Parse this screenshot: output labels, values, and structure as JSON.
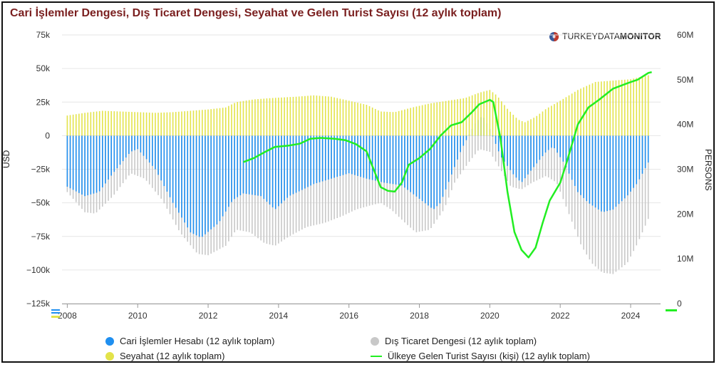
{
  "title": "Cari İşlemler Dengesi, Dış Ticaret Dengesi, Seyahat ve Gelen Turist Sayısı (12 aylık toplam)",
  "logo": {
    "prefix": "TURKEYDATA",
    "suffix": "MONITOR",
    "icon": "globe-icon"
  },
  "colors": {
    "current_account": "#1f8ff0",
    "trade": "#c8c8c8",
    "travel": "#e3e34a",
    "tourists": "#22ee22",
    "title": "#7a1f1f"
  },
  "legend": [
    {
      "label": "Cari İşlemler Hesabı (12 aylık toplam)",
      "kind": "dot",
      "color": "#1f8ff0"
    },
    {
      "label": "Dış Ticaret Dengesi (12 aylık toplam)",
      "kind": "dot",
      "color": "#c8c8c8"
    },
    {
      "label": "Seyahat (12 aylık toplam)",
      "kind": "dot",
      "color": "#e3e34a"
    },
    {
      "label": "Ülkeye Gelen Turist Sayısı (kişi) (12 aylık toplam)",
      "kind": "line",
      "color": "#22ee22"
    }
  ],
  "chart_data": {
    "type": "bar",
    "title": "Cari İşlemler Dengesi, Dış Ticaret Dengesi, Seyahat ve Gelen Turist Sayısı (12 aylık toplam)",
    "x_axis": {
      "min": 2007.85,
      "max": 2024.85,
      "ticks": [
        "2008",
        "2010",
        "2012",
        "2014",
        "2016",
        "2018",
        "2020",
        "2022",
        "2024"
      ]
    },
    "y_left": {
      "label": "USD",
      "min": -125000,
      "max": 75000,
      "ticks": [
        "75k",
        "50k",
        "25k",
        "0",
        "−25k",
        "−50k",
        "−75k",
        "−100k",
        "−125k"
      ]
    },
    "y_right": {
      "label": "PERSONS",
      "min": 0,
      "max": 60000000,
      "ticks": [
        "60M",
        "50M",
        "40M",
        "30M",
        "20M",
        "10M",
        "0"
      ]
    },
    "grid": true,
    "legend_position": "bottom",
    "series": [
      {
        "name": "Cari İşlemler Hesabı (12 aylık toplam)",
        "axis": "left",
        "interpolate": "monthly",
        "points": [
          [
            2008.0,
            -38000
          ],
          [
            2008.5,
            -45000
          ],
          [
            2008.9,
            -42000
          ],
          [
            2009.3,
            -28000
          ],
          [
            2009.8,
            -12000
          ],
          [
            2010.0,
            -10000
          ],
          [
            2010.5,
            -25000
          ],
          [
            2011.0,
            -50000
          ],
          [
            2011.5,
            -72000
          ],
          [
            2011.8,
            -76000
          ],
          [
            2012.3,
            -65000
          ],
          [
            2012.7,
            -48000
          ],
          [
            2013.0,
            -43000
          ],
          [
            2013.5,
            -45000
          ],
          [
            2013.9,
            -55000
          ],
          [
            2014.3,
            -45000
          ],
          [
            2014.7,
            -40000
          ],
          [
            2015.0,
            -36000
          ],
          [
            2015.5,
            -32000
          ],
          [
            2016.0,
            -28000
          ],
          [
            2016.5,
            -32000
          ],
          [
            2017.0,
            -35000
          ],
          [
            2017.5,
            -37000
          ],
          [
            2017.9,
            -45000
          ],
          [
            2018.4,
            -55000
          ],
          [
            2018.6,
            -50000
          ],
          [
            2018.9,
            -30000
          ],
          [
            2019.2,
            -10000
          ],
          [
            2019.4,
            0
          ],
          [
            2019.6,
            10000
          ],
          [
            2019.8,
            15000
          ],
          [
            2020.0,
            5000
          ],
          [
            2020.3,
            -15000
          ],
          [
            2020.7,
            -30000
          ],
          [
            2020.9,
            -35000
          ],
          [
            2021.2,
            -25000
          ],
          [
            2021.6,
            -12000
          ],
          [
            2021.8,
            -8000
          ],
          [
            2022.1,
            -20000
          ],
          [
            2022.5,
            -42000
          ],
          [
            2022.8,
            -50000
          ],
          [
            2023.2,
            -57000
          ],
          [
            2023.5,
            -55000
          ],
          [
            2023.9,
            -45000
          ],
          [
            2024.2,
            -35000
          ],
          [
            2024.5,
            -20000
          ]
        ]
      },
      {
        "name": "Dış Ticaret Dengesi (12 aylık toplam)",
        "axis": "left",
        "interpolate": "monthly",
        "points": [
          [
            2008.0,
            -42000
          ],
          [
            2008.5,
            -57000
          ],
          [
            2008.8,
            -58000
          ],
          [
            2009.3,
            -45000
          ],
          [
            2009.8,
            -28000
          ],
          [
            2010.2,
            -32000
          ],
          [
            2010.7,
            -48000
          ],
          [
            2011.2,
            -72000
          ],
          [
            2011.7,
            -88000
          ],
          [
            2012.0,
            -89000
          ],
          [
            2012.5,
            -82000
          ],
          [
            2012.8,
            -70000
          ],
          [
            2013.2,
            -72000
          ],
          [
            2013.6,
            -80000
          ],
          [
            2013.9,
            -82000
          ],
          [
            2014.3,
            -75000
          ],
          [
            2014.8,
            -68000
          ],
          [
            2015.3,
            -65000
          ],
          [
            2015.8,
            -60000
          ],
          [
            2016.2,
            -55000
          ],
          [
            2016.6,
            -52000
          ],
          [
            2016.9,
            -50000
          ],
          [
            2017.2,
            -55000
          ],
          [
            2017.6,
            -65000
          ],
          [
            2017.9,
            -72000
          ],
          [
            2018.3,
            -70000
          ],
          [
            2018.7,
            -55000
          ],
          [
            2019.0,
            -35000
          ],
          [
            2019.4,
            -20000
          ],
          [
            2019.7,
            -10000
          ],
          [
            2020.0,
            -12000
          ],
          [
            2020.3,
            -25000
          ],
          [
            2020.6,
            -38000
          ],
          [
            2020.9,
            -40000
          ],
          [
            2021.2,
            -35000
          ],
          [
            2021.6,
            -30000
          ],
          [
            2021.9,
            -35000
          ],
          [
            2022.2,
            -55000
          ],
          [
            2022.6,
            -82000
          ],
          [
            2022.9,
            -95000
          ],
          [
            2023.2,
            -102000
          ],
          [
            2023.5,
            -103000
          ],
          [
            2023.9,
            -95000
          ],
          [
            2024.2,
            -80000
          ],
          [
            2024.5,
            -62000
          ]
        ]
      },
      {
        "name": "Seyahat (12 aylık toplam)",
        "axis": "left",
        "interpolate": "monthly",
        "points": [
          [
            2008.0,
            15000
          ],
          [
            2008.5,
            17000
          ],
          [
            2009.0,
            18500
          ],
          [
            2009.5,
            18000
          ],
          [
            2010.0,
            17500
          ],
          [
            2010.5,
            17000
          ],
          [
            2011.0,
            17500
          ],
          [
            2011.5,
            18500
          ],
          [
            2012.0,
            19500
          ],
          [
            2012.5,
            21000
          ],
          [
            2012.8,
            25000
          ],
          [
            2013.3,
            27000
          ],
          [
            2013.8,
            28000
          ],
          [
            2014.5,
            29000
          ],
          [
            2015.0,
            30000
          ],
          [
            2015.5,
            29000
          ],
          [
            2016.0,
            26000
          ],
          [
            2016.5,
            23000
          ],
          [
            2016.9,
            18000
          ],
          [
            2017.3,
            17500
          ],
          [
            2017.8,
            21000
          ],
          [
            2018.3,
            24000
          ],
          [
            2018.8,
            26000
          ],
          [
            2019.3,
            28000
          ],
          [
            2019.7,
            32000
          ],
          [
            2020.0,
            34000
          ],
          [
            2020.2,
            30000
          ],
          [
            2020.5,
            20000
          ],
          [
            2020.8,
            12000
          ],
          [
            2021.0,
            10000
          ],
          [
            2021.3,
            14000
          ],
          [
            2021.6,
            20000
          ],
          [
            2022.0,
            26000
          ],
          [
            2022.5,
            34000
          ],
          [
            2023.0,
            40000
          ],
          [
            2023.5,
            41000
          ],
          [
            2024.0,
            42000
          ],
          [
            2024.5,
            45000
          ]
        ]
      },
      {
        "name": "Ülkeye Gelen Turist Sayısı (kişi) (12 aylık toplam)",
        "axis": "right",
        "type": "line",
        "points": [
          [
            2013.0,
            31600000
          ],
          [
            2013.3,
            32500000
          ],
          [
            2013.6,
            33800000
          ],
          [
            2013.9,
            35000000
          ],
          [
            2014.3,
            35300000
          ],
          [
            2014.6,
            35700000
          ],
          [
            2014.9,
            36800000
          ],
          [
            2015.2,
            37000000
          ],
          [
            2015.6,
            36800000
          ],
          [
            2015.9,
            36500000
          ],
          [
            2016.2,
            35600000
          ],
          [
            2016.5,
            34000000
          ],
          [
            2016.7,
            30000000
          ],
          [
            2016.9,
            26000000
          ],
          [
            2017.1,
            25200000
          ],
          [
            2017.3,
            25000000
          ],
          [
            2017.5,
            27000000
          ],
          [
            2017.7,
            31000000
          ],
          [
            2018.0,
            32500000
          ],
          [
            2018.3,
            34500000
          ],
          [
            2018.6,
            37500000
          ],
          [
            2018.9,
            39800000
          ],
          [
            2019.2,
            40500000
          ],
          [
            2019.5,
            42800000
          ],
          [
            2019.7,
            44500000
          ],
          [
            2020.0,
            45500000
          ],
          [
            2020.1,
            45000000
          ],
          [
            2020.3,
            37000000
          ],
          [
            2020.5,
            25000000
          ],
          [
            2020.7,
            16000000
          ],
          [
            2020.9,
            12000000
          ],
          [
            2021.1,
            10300000
          ],
          [
            2021.3,
            12500000
          ],
          [
            2021.5,
            18000000
          ],
          [
            2021.7,
            23000000
          ],
          [
            2022.0,
            27000000
          ],
          [
            2022.2,
            32000000
          ],
          [
            2022.5,
            40000000
          ],
          [
            2022.8,
            43800000
          ],
          [
            2023.1,
            45500000
          ],
          [
            2023.5,
            48000000
          ],
          [
            2023.9,
            49200000
          ],
          [
            2024.2,
            50000000
          ],
          [
            2024.5,
            51500000
          ],
          [
            2024.6,
            51700000
          ]
        ]
      }
    ]
  }
}
